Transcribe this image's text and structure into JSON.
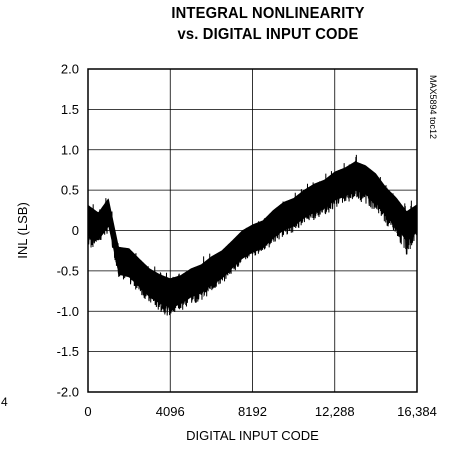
{
  "chart_data": {
    "type": "line",
    "title_line1": "INTEGRAL NONLINEARITY",
    "title_line2": "vs. DIGITAL INPUT CODE",
    "xlabel": "DIGITAL INPUT CODE",
    "ylabel": "INL (LSB)",
    "side_label": "MAX5894 toc12",
    "stray_label": "4",
    "xlim": [
      0,
      16384
    ],
    "ylim": [
      -2.0,
      2.0
    ],
    "x_ticks": [
      0,
      4096,
      8192,
      12288,
      16384
    ],
    "x_tick_labels": [
      "0",
      "4096",
      "8192",
      "12,288",
      "16,384"
    ],
    "y_ticks": [
      2.0,
      1.5,
      1.0,
      0.5,
      0,
      -0.5,
      -1.0,
      -1.5,
      -2.0
    ],
    "y_tick_labels": [
      "2.0",
      "1.5",
      "1.0",
      "0.5",
      "0",
      "-0.5",
      "-1.0",
      "-1.5",
      "-2.0"
    ],
    "grid": true,
    "series": [
      {
        "x": [
          0,
          512,
          1024,
          1536,
          2048,
          2560,
          3072,
          3584,
          4096,
          4608,
          5120,
          5632,
          6144,
          6656,
          7168,
          7680,
          8192,
          8704,
          9216,
          9728,
          10240,
          10752,
          11264,
          11776,
          12288,
          12800,
          13312,
          13824,
          14336,
          14848,
          15360,
          15872,
          16384
        ],
        "upper": [
          0.55,
          0.3,
          0.5,
          -0.15,
          -0.1,
          -0.25,
          -0.35,
          -0.4,
          -0.45,
          -0.42,
          -0.35,
          -0.3,
          -0.2,
          -0.15,
          -0.05,
          0.1,
          0.15,
          0.2,
          0.35,
          0.45,
          0.5,
          0.6,
          0.7,
          0.75,
          0.85,
          0.9,
          1.0,
          0.95,
          0.85,
          0.7,
          0.55,
          0.45,
          0.4
        ],
        "lower": [
          -0.3,
          -0.2,
          -0.05,
          -0.6,
          -0.7,
          -0.8,
          -0.95,
          -1.05,
          -1.1,
          -1.05,
          -0.95,
          -0.9,
          -0.8,
          -0.7,
          -0.55,
          -0.45,
          -0.35,
          -0.3,
          -0.2,
          -0.1,
          -0.05,
          0.05,
          0.1,
          0.15,
          0.25,
          0.3,
          0.35,
          0.3,
          0.2,
          0.0,
          -0.1,
          -0.35,
          -0.1
        ]
      }
    ]
  }
}
